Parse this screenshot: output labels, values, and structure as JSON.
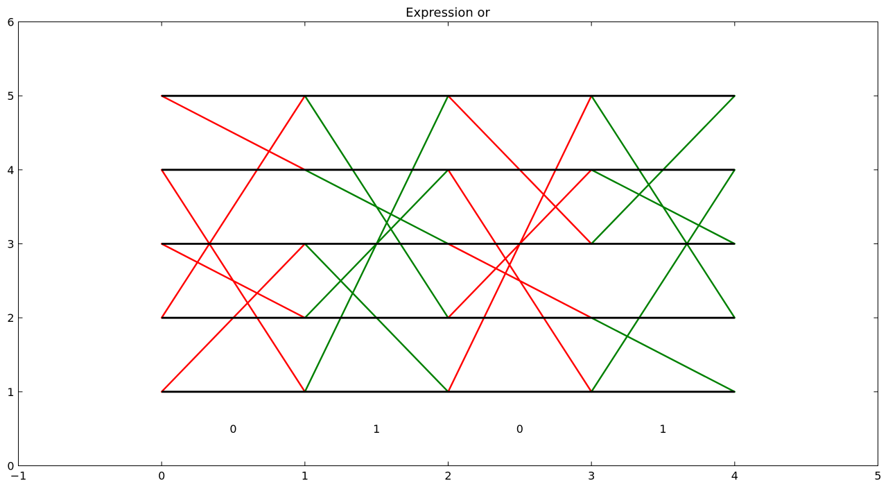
{
  "chart_data": {
    "type": "line",
    "title": "Expression or",
    "xlabel": "",
    "ylabel": "",
    "xlim": [
      -1,
      5
    ],
    "ylim": [
      0,
      6
    ],
    "xticks": [
      -1,
      0,
      1,
      2,
      3,
      4,
      5
    ],
    "yticks": [
      0,
      1,
      2,
      3,
      4,
      5,
      6
    ],
    "xtick_labels": [
      "−1",
      "0",
      "1",
      "2",
      "3",
      "4",
      "5"
    ],
    "ytick_labels": [
      "0",
      "1",
      "2",
      "3",
      "4",
      "5",
      "6"
    ],
    "grid": false,
    "colors": {
      "rail": "#000000",
      "red": "#ff0000",
      "green": "#008000"
    },
    "rails": [
      {
        "y": 1,
        "x": [
          0,
          4
        ]
      },
      {
        "y": 2,
        "x": [
          0,
          4
        ]
      },
      {
        "y": 3,
        "x": [
          0,
          4
        ]
      },
      {
        "y": 4,
        "x": [
          0,
          4
        ]
      },
      {
        "y": 5,
        "x": [
          0,
          4
        ]
      }
    ],
    "segments": [
      {
        "color": "red",
        "from": [
          0,
          1
        ],
        "to": [
          1,
          3
        ]
      },
      {
        "color": "red",
        "from": [
          0,
          2
        ],
        "to": [
          1,
          5
        ]
      },
      {
        "color": "red",
        "from": [
          0,
          3
        ],
        "to": [
          1,
          2
        ]
      },
      {
        "color": "red",
        "from": [
          0,
          4
        ],
        "to": [
          1,
          1
        ]
      },
      {
        "color": "red",
        "from": [
          0,
          5
        ],
        "to": [
          1,
          4
        ]
      },
      {
        "color": "green",
        "from": [
          1,
          1
        ],
        "to": [
          2,
          5
        ]
      },
      {
        "color": "green",
        "from": [
          1,
          2
        ],
        "to": [
          2,
          4
        ]
      },
      {
        "color": "green",
        "from": [
          1,
          3
        ],
        "to": [
          2,
          1
        ]
      },
      {
        "color": "green",
        "from": [
          1,
          4
        ],
        "to": [
          2,
          3
        ]
      },
      {
        "color": "green",
        "from": [
          1,
          5
        ],
        "to": [
          2,
          2
        ]
      },
      {
        "color": "red",
        "from": [
          2,
          1
        ],
        "to": [
          3,
          5
        ]
      },
      {
        "color": "red",
        "from": [
          2,
          2
        ],
        "to": [
          3,
          4
        ]
      },
      {
        "color": "red",
        "from": [
          2,
          3
        ],
        "to": [
          3,
          2
        ]
      },
      {
        "color": "red",
        "from": [
          2,
          4
        ],
        "to": [
          3,
          1
        ]
      },
      {
        "color": "red",
        "from": [
          2,
          5
        ],
        "to": [
          3,
          3
        ]
      },
      {
        "color": "green",
        "from": [
          3,
          1
        ],
        "to": [
          4,
          4
        ]
      },
      {
        "color": "green",
        "from": [
          3,
          2
        ],
        "to": [
          4,
          1
        ]
      },
      {
        "color": "green",
        "from": [
          3,
          3
        ],
        "to": [
          4,
          5
        ]
      },
      {
        "color": "green",
        "from": [
          3,
          4
        ],
        "to": [
          4,
          3
        ]
      },
      {
        "color": "green",
        "from": [
          3,
          5
        ],
        "to": [
          4,
          2
        ]
      }
    ],
    "annotations": [
      {
        "text": "0",
        "x": 0.5,
        "y": 0.5
      },
      {
        "text": "1",
        "x": 1.5,
        "y": 0.5
      },
      {
        "text": "0",
        "x": 2.5,
        "y": 0.5
      },
      {
        "text": "1",
        "x": 3.5,
        "y": 0.5
      }
    ]
  }
}
